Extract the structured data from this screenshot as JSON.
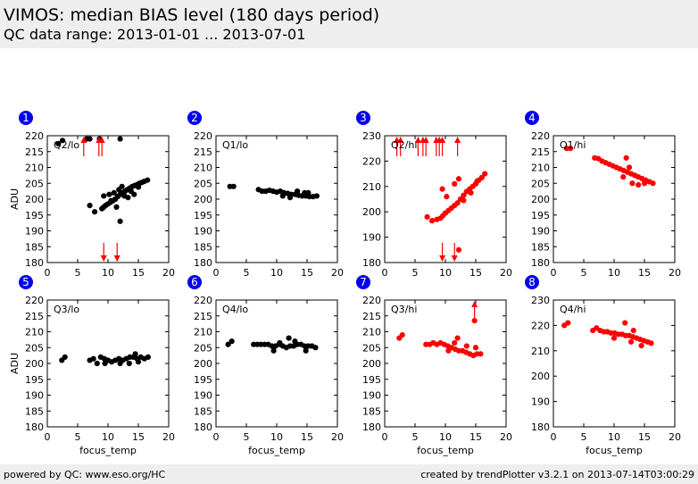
{
  "header": {
    "title": "VIMOS: median BIAS level (180 days period)",
    "subtitle": "QC data range: 2013-01-01 ... 2013-07-01"
  },
  "footer": {
    "left": "powered by QC: www.eso.org/HC",
    "right": "created by trendPlotter v3.2.1 on 2013-07-14T03:00:29"
  },
  "colors": {
    "marker_normal": "#000000",
    "marker_alert": "#ff0000",
    "badge": "#0000ee"
  },
  "chart_data": [
    {
      "type": "scatter",
      "badge": "1",
      "label": "Q2/lo",
      "xlabel": "",
      "ylabel": "ADU",
      "xlim": [
        0,
        20
      ],
      "ylim": [
        180,
        220
      ],
      "xticks": [
        0,
        5,
        10,
        15,
        20
      ],
      "yticks": [
        180,
        185,
        190,
        195,
        200,
        205,
        210,
        215,
        220
      ],
      "color": "#000000",
      "points": [
        [
          1.8,
          217.5
        ],
        [
          2.5,
          218.5
        ],
        [
          6.5,
          219
        ],
        [
          7,
          219
        ],
        [
          8.6,
          219
        ],
        [
          12,
          219
        ],
        [
          7,
          198
        ],
        [
          7.8,
          196
        ],
        [
          9,
          197
        ],
        [
          9.3,
          197.5
        ],
        [
          9.6,
          198
        ],
        [
          10,
          198.5
        ],
        [
          10.4,
          199
        ],
        [
          10.8,
          199.5
        ],
        [
          11.2,
          200
        ],
        [
          11.6,
          200.8
        ],
        [
          12,
          201.5
        ],
        [
          12.4,
          202
        ],
        [
          12.8,
          202.5
        ],
        [
          13.2,
          203
        ],
        [
          13.6,
          203.5
        ],
        [
          14,
          204
        ],
        [
          14.4,
          204.3
        ],
        [
          14.8,
          204.6
        ],
        [
          15.2,
          205
        ],
        [
          15.6,
          205.3
        ],
        [
          16,
          205.6
        ],
        [
          16.5,
          206
        ],
        [
          9.3,
          201
        ],
        [
          10.2,
          201.5
        ],
        [
          11,
          202
        ],
        [
          11.8,
          203
        ],
        [
          12.3,
          204
        ],
        [
          12.7,
          201
        ],
        [
          13.3,
          200.5
        ],
        [
          13.8,
          202.5
        ],
        [
          14.3,
          201.5
        ],
        [
          15,
          203.8
        ],
        [
          12,
          193
        ],
        [
          10.5,
          199.5
        ],
        [
          11.4,
          197.5
        ]
      ],
      "out_high": [
        6,
        8.5,
        9
      ],
      "out_low": [
        9.3,
        11.5
      ]
    },
    {
      "type": "scatter",
      "badge": "2",
      "label": "Q1/lo",
      "xlabel": "",
      "ylabel": "",
      "xlim": [
        0,
        20
      ],
      "ylim": [
        180,
        220
      ],
      "xticks": [
        0,
        5,
        10,
        15,
        20
      ],
      "yticks": [
        180,
        185,
        190,
        195,
        200,
        205,
        210,
        215,
        220
      ],
      "color": "#000000",
      "points": [
        [
          2.3,
          204
        ],
        [
          2.9,
          204
        ],
        [
          7,
          203
        ],
        [
          7.6,
          202.5
        ],
        [
          8.2,
          202.5
        ],
        [
          8.8,
          202.8
        ],
        [
          9.4,
          202.5
        ],
        [
          10,
          202.2
        ],
        [
          10.6,
          202.5
        ],
        [
          11.2,
          202
        ],
        [
          11.8,
          201.8
        ],
        [
          12.4,
          201.5
        ],
        [
          13,
          201.5
        ],
        [
          13.6,
          201.2
        ],
        [
          14.2,
          201
        ],
        [
          14.8,
          201
        ],
        [
          15.4,
          200.8
        ],
        [
          16,
          200.8
        ],
        [
          16.6,
          201
        ],
        [
          12.2,
          200.5
        ],
        [
          13.4,
          202.5
        ],
        [
          14.6,
          202
        ],
        [
          11,
          201
        ],
        [
          15.2,
          202
        ]
      ],
      "out_high": [],
      "out_low": []
    },
    {
      "type": "scatter",
      "badge": "3",
      "label": "Q2/hi",
      "xlabel": "",
      "ylabel": "",
      "xlim": [
        0,
        20
      ],
      "ylim": [
        180,
        230
      ],
      "xticks": [
        0,
        5,
        10,
        15,
        20
      ],
      "yticks": [
        180,
        190,
        200,
        210,
        220,
        230
      ],
      "color": "#ff0000",
      "points": [
        [
          7,
          198
        ],
        [
          7.8,
          196.5
        ],
        [
          8.6,
          197
        ],
        [
          9.2,
          197.5
        ],
        [
          9.6,
          198.5
        ],
        [
          10,
          199.5
        ],
        [
          10.5,
          200.5
        ],
        [
          11,
          201.5
        ],
        [
          11.5,
          202.5
        ],
        [
          12,
          203.5
        ],
        [
          12.5,
          205
        ],
        [
          13,
          206.5
        ],
        [
          13.5,
          208
        ],
        [
          14,
          209
        ],
        [
          14.5,
          210
        ],
        [
          15,
          211
        ],
        [
          15.5,
          212.5
        ],
        [
          16,
          213.5
        ],
        [
          16.5,
          215
        ],
        [
          9.5,
          209
        ],
        [
          11.5,
          211
        ],
        [
          12.2,
          213
        ],
        [
          10.2,
          206
        ],
        [
          12.2,
          185
        ],
        [
          13,
          204.5
        ],
        [
          14.2,
          207.5
        ],
        [
          15.2,
          212
        ]
      ],
      "out_high": [
        2,
        2.6,
        5.5,
        6.3,
        6.8,
        8.5,
        9,
        9.5,
        12
      ],
      "out_low": [
        9.5,
        11.5
      ]
    },
    {
      "type": "scatter",
      "badge": "4",
      "label": "Q1/hi",
      "xlabel": "",
      "ylabel": "",
      "xlim": [
        0,
        20
      ],
      "ylim": [
        180,
        220
      ],
      "xticks": [
        0,
        5,
        10,
        15,
        20
      ],
      "yticks": [
        180,
        185,
        190,
        195,
        200,
        205,
        210,
        215,
        220
      ],
      "color": "#ff0000",
      "points": [
        [
          2.2,
          216
        ],
        [
          2.8,
          216
        ],
        [
          6.8,
          213
        ],
        [
          7.4,
          212.8
        ],
        [
          8,
          212
        ],
        [
          8.6,
          211.5
        ],
        [
          9.2,
          211
        ],
        [
          9.8,
          210.5
        ],
        [
          10.4,
          210
        ],
        [
          11,
          209.5
        ],
        [
          11.6,
          209
        ],
        [
          12.2,
          208.5
        ],
        [
          12.8,
          208
        ],
        [
          13.4,
          207.5
        ],
        [
          14,
          207
        ],
        [
          14.6,
          206.5
        ],
        [
          15.2,
          206
        ],
        [
          15.8,
          205.5
        ],
        [
          16.4,
          205
        ],
        [
          12,
          213
        ],
        [
          13,
          205
        ],
        [
          14,
          204.5
        ],
        [
          15,
          205
        ],
        [
          12.5,
          210
        ],
        [
          11.5,
          207
        ]
      ],
      "out_high": [],
      "out_low": []
    },
    {
      "type": "scatter",
      "badge": "5",
      "label": "Q3/lo",
      "xlabel": "focus_temp",
      "ylabel": "ADU",
      "xlim": [
        0,
        20
      ],
      "ylim": [
        180,
        220
      ],
      "xticks": [
        0,
        5,
        10,
        15,
        20
      ],
      "yticks": [
        180,
        185,
        190,
        195,
        200,
        205,
        210,
        215,
        220
      ],
      "color": "#000000",
      "points": [
        [
          2.4,
          201
        ],
        [
          2.9,
          202
        ],
        [
          7,
          201
        ],
        [
          7.6,
          201.5
        ],
        [
          8.2,
          200
        ],
        [
          8.8,
          202
        ],
        [
          9.4,
          201.5
        ],
        [
          10,
          201
        ],
        [
          10.6,
          200.5
        ],
        [
          11.2,
          201
        ],
        [
          11.8,
          201.5
        ],
        [
          12.4,
          201
        ],
        [
          13,
          201.5
        ],
        [
          13.6,
          202
        ],
        [
          14.2,
          202
        ],
        [
          14.8,
          201.5
        ],
        [
          15.4,
          202
        ],
        [
          16,
          201.5
        ],
        [
          16.6,
          202
        ],
        [
          14.5,
          203
        ],
        [
          9.5,
          200
        ],
        [
          12,
          200
        ],
        [
          15,
          200.5
        ],
        [
          13.5,
          200
        ]
      ],
      "out_high": [],
      "out_low": []
    },
    {
      "type": "scatter",
      "badge": "6",
      "label": "Q4/lo",
      "xlabel": "focus_temp",
      "ylabel": "",
      "xlim": [
        0,
        20
      ],
      "ylim": [
        180,
        220
      ],
      "xticks": [
        0,
        5,
        10,
        15,
        20
      ],
      "yticks": [
        180,
        185,
        190,
        195,
        200,
        205,
        210,
        215,
        220
      ],
      "color": "#000000",
      "points": [
        [
          2,
          206
        ],
        [
          2.6,
          207
        ],
        [
          6.2,
          206
        ],
        [
          6.8,
          206
        ],
        [
          7.4,
          206
        ],
        [
          8,
          206
        ],
        [
          8.6,
          206
        ],
        [
          9.2,
          205.5
        ],
        [
          9.8,
          205.5
        ],
        [
          10.4,
          206
        ],
        [
          11,
          205.5
        ],
        [
          11.6,
          205
        ],
        [
          12.2,
          205.5
        ],
        [
          12.8,
          205.5
        ],
        [
          13.4,
          206
        ],
        [
          14,
          206
        ],
        [
          14.6,
          205.5
        ],
        [
          15.2,
          205.5
        ],
        [
          15.8,
          205.5
        ],
        [
          16.4,
          205
        ],
        [
          12,
          208
        ],
        [
          9.5,
          204
        ],
        [
          14.8,
          204
        ],
        [
          10.5,
          206.5
        ],
        [
          13,
          207
        ]
      ],
      "out_high": [],
      "out_low": []
    },
    {
      "type": "scatter",
      "badge": "7",
      "label": "Q3/hi",
      "xlabel": "focus_temp",
      "ylabel": "",
      "xlim": [
        0,
        20
      ],
      "ylim": [
        180,
        220
      ],
      "xticks": [
        0,
        5,
        10,
        15,
        20
      ],
      "yticks": [
        180,
        185,
        190,
        195,
        200,
        205,
        210,
        215,
        220
      ],
      "color": "#ff0000",
      "points": [
        [
          2.4,
          208
        ],
        [
          2.9,
          209
        ],
        [
          6.8,
          206
        ],
        [
          7.4,
          206
        ],
        [
          8,
          206.5
        ],
        [
          8.6,
          206
        ],
        [
          9.2,
          206.5
        ],
        [
          9.8,
          206
        ],
        [
          10.4,
          205.5
        ],
        [
          11,
          205
        ],
        [
          11.6,
          204.5
        ],
        [
          12.2,
          204
        ],
        [
          12.8,
          204
        ],
        [
          13.4,
          203.5
        ],
        [
          14,
          203
        ],
        [
          14.6,
          202.5
        ],
        [
          15.2,
          203
        ],
        [
          15.8,
          203
        ],
        [
          12,
          208
        ],
        [
          14.8,
          213.5
        ],
        [
          10.5,
          204
        ],
        [
          13.5,
          205.5
        ],
        [
          15,
          205
        ],
        [
          11.5,
          206.5
        ]
      ],
      "out_high": [
        14.8
      ],
      "out_low": []
    },
    {
      "type": "scatter",
      "badge": "8",
      "label": "Q4/hi",
      "xlabel": "focus_temp",
      "ylabel": "",
      "xlim": [
        0,
        20
      ],
      "ylim": [
        180,
        230
      ],
      "xticks": [
        0,
        5,
        10,
        15,
        20
      ],
      "yticks": [
        180,
        190,
        200,
        210,
        220,
        230
      ],
      "color": "#ff0000",
      "points": [
        [
          1.8,
          220
        ],
        [
          2.4,
          221
        ],
        [
          6.5,
          218
        ],
        [
          7.1,
          219
        ],
        [
          7.7,
          218
        ],
        [
          8.3,
          217.5
        ],
        [
          8.9,
          217.5
        ],
        [
          9.5,
          217
        ],
        [
          10.1,
          217
        ],
        [
          10.7,
          216.5
        ],
        [
          11.3,
          216.5
        ],
        [
          11.9,
          216
        ],
        [
          12.5,
          216
        ],
        [
          13.1,
          215.5
        ],
        [
          13.7,
          215
        ],
        [
          14.3,
          214.5
        ],
        [
          14.9,
          214
        ],
        [
          15.5,
          213.5
        ],
        [
          16.1,
          213
        ],
        [
          11.8,
          221
        ],
        [
          13.2,
          218
        ],
        [
          14.5,
          212
        ],
        [
          10,
          215
        ],
        [
          12.8,
          213.5
        ]
      ],
      "out_high": [],
      "out_low": []
    }
  ]
}
